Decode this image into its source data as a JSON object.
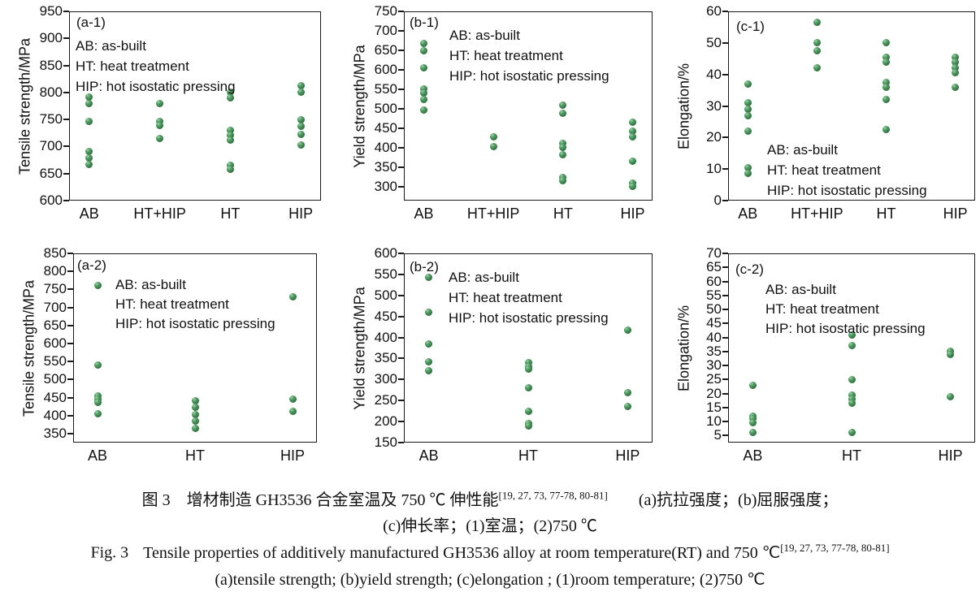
{
  "figure": {
    "caption_zh_line1": "图 3　增材制造 GH3536 合金室温及 750 ℃ 伸性能",
    "caption_zh_refs": "[19, 27, 73, 77-78, 80-81]",
    "caption_zh_line1b": "(a)抗拉强度；(b)屈服强度；",
    "caption_zh_line2": "(c)伸长率；(1)室温；(2)750 ℃",
    "caption_en_prefix": "Fig. 3",
    "caption_en_line1": "Tensile properties of additively manufactured GH3536 alloy at room temperature(RT) and 750 ℃",
    "caption_en_refs": "[19, 27, 73, 77-78, 80-81]",
    "caption_en_line2": "(a)tensile strength; (b)yield strength; (c)elongation ; (1)room temperature; (2)750 ℃"
  },
  "legend_lines": [
    "AB: as-built",
    "HT: heat treatment",
    "HIP: hot isostatic pressing"
  ],
  "marker_color": "#357b46",
  "chart_data": [
    {
      "id": "a-1",
      "type": "scatter",
      "panel_label": "(a-1)",
      "title": "Tensile strength at room temperature",
      "xlabel": "",
      "ylabel": "Tensile strength/MPa",
      "ylim": [
        600,
        950
      ],
      "yticks": [
        950,
        900,
        850,
        800,
        750,
        700,
        650,
        600
      ],
      "grid": false,
      "legend_position": "top-left-inside",
      "categories": [
        "AB",
        "HT+HIP",
        "HT",
        "HIP"
      ],
      "series": [
        {
          "name": "AB",
          "values": [
            791,
            780,
            746,
            691,
            679,
            667
          ]
        },
        {
          "name": "HT+HIP",
          "values": [
            780,
            747,
            739,
            715
          ]
        },
        {
          "name": "HT",
          "values": [
            801,
            790,
            730,
            721,
            712,
            666,
            658
          ]
        },
        {
          "name": "HIP",
          "values": [
            812,
            801,
            750,
            737,
            723,
            703
          ]
        }
      ]
    },
    {
      "id": "b-1",
      "type": "scatter",
      "panel_label": "(b-1)",
      "title": "Yield strength at room temperature",
      "xlabel": "",
      "ylabel": "Yield strength/MPa",
      "ylim": [
        265,
        750
      ],
      "yticks": [
        750,
        700,
        650,
        600,
        550,
        500,
        450,
        400,
        350,
        300
      ],
      "grid": false,
      "legend_position": "top-inside",
      "categories": [
        "AB",
        "HT+HIP",
        "HT",
        "HIP"
      ],
      "series": [
        {
          "name": "AB",
          "values": [
            668,
            650,
            606,
            551,
            541,
            525,
            497
          ]
        },
        {
          "name": "HT+HIP",
          "values": [
            429,
            404
          ]
        },
        {
          "name": "HT",
          "values": [
            510,
            489,
            412,
            401,
            383,
            325,
            316
          ]
        },
        {
          "name": "HIP",
          "values": [
            466,
            443,
            428,
            366,
            309,
            301
          ]
        }
      ]
    },
    {
      "id": "c-1",
      "type": "scatter",
      "panel_label": "(c-1)",
      "title": "Elongation at room temperature",
      "xlabel": "",
      "ylabel": "Elongation/%",
      "ylim": [
        0,
        60
      ],
      "yticks": [
        60,
        50,
        40,
        30,
        20,
        10,
        0
      ],
      "grid": false,
      "legend_position": "bottom-inside",
      "categories": [
        "AB",
        "HT+HIP",
        "HT",
        "HIP"
      ],
      "series": [
        {
          "name": "AB",
          "values": [
            37,
            31,
            29,
            27,
            22,
            10.5,
            8.5
          ]
        },
        {
          "name": "HT+HIP",
          "values": [
            56.5,
            50,
            47.5,
            42
          ]
        },
        {
          "name": "HT",
          "values": [
            50,
            45.5,
            44,
            37.5,
            36,
            32,
            22.5
          ]
        },
        {
          "name": "HIP",
          "values": [
            45.5,
            44,
            42,
            40.5,
            36
          ]
        }
      ]
    },
    {
      "id": "a-2",
      "type": "scatter",
      "panel_label": "(a-2)",
      "title": "Tensile strength at 750 ℃",
      "xlabel": "",
      "ylabel": "Tensile strength/MPa",
      "ylim": [
        325,
        850
      ],
      "yticks": [
        850,
        800,
        750,
        700,
        650,
        600,
        550,
        500,
        450,
        400,
        350
      ],
      "grid": false,
      "legend_position": "top-left-inside",
      "categories": [
        "AB",
        "HT",
        "HIP"
      ],
      "series": [
        {
          "name": "AB",
          "values": [
            760,
            540,
            455,
            446,
            437,
            406
          ]
        },
        {
          "name": "HT",
          "values": [
            441,
            423,
            402,
            384,
            365
          ]
        },
        {
          "name": "HIP",
          "values": [
            730,
            445,
            412
          ]
        }
      ]
    },
    {
      "id": "b-2",
      "type": "scatter",
      "panel_label": "(b-2)",
      "title": "Yield strength at 750 ℃",
      "xlabel": "",
      "ylabel": "Yield strength/MPa",
      "ylim": [
        150,
        600
      ],
      "yticks": [
        600,
        550,
        500,
        450,
        400,
        350,
        300,
        250,
        200,
        150
      ],
      "grid": false,
      "legend_position": "top-inside",
      "categories": [
        "AB",
        "HT",
        "HIP"
      ],
      "series": [
        {
          "name": "AB",
          "values": [
            543,
            460,
            384,
            343,
            321
          ]
        },
        {
          "name": "HT",
          "values": [
            340,
            331,
            324,
            281,
            224,
            196,
            189
          ]
        },
        {
          "name": "HIP",
          "values": [
            417,
            269,
            236
          ]
        }
      ]
    },
    {
      "id": "c-2",
      "type": "scatter",
      "panel_label": "(c-2)",
      "title": "Elongation at 750 ℃",
      "xlabel": "",
      "ylabel": "Elongation/%",
      "ylim": [
        2.5,
        70
      ],
      "yticks": [
        70,
        65,
        60,
        55,
        50,
        45,
        40,
        35,
        30,
        25,
        20,
        15,
        10,
        5
      ],
      "grid": false,
      "legend_position": "top-inside",
      "categories": [
        "AB",
        "HT",
        "HIP"
      ],
      "series": [
        {
          "name": "AB",
          "values": [
            23,
            12,
            11,
            9.5,
            6
          ]
        },
        {
          "name": "HT",
          "values": [
            41,
            37,
            25,
            19.5,
            18,
            16.5,
            6
          ]
        },
        {
          "name": "HIP",
          "values": [
            35,
            34,
            19
          ]
        }
      ]
    }
  ]
}
